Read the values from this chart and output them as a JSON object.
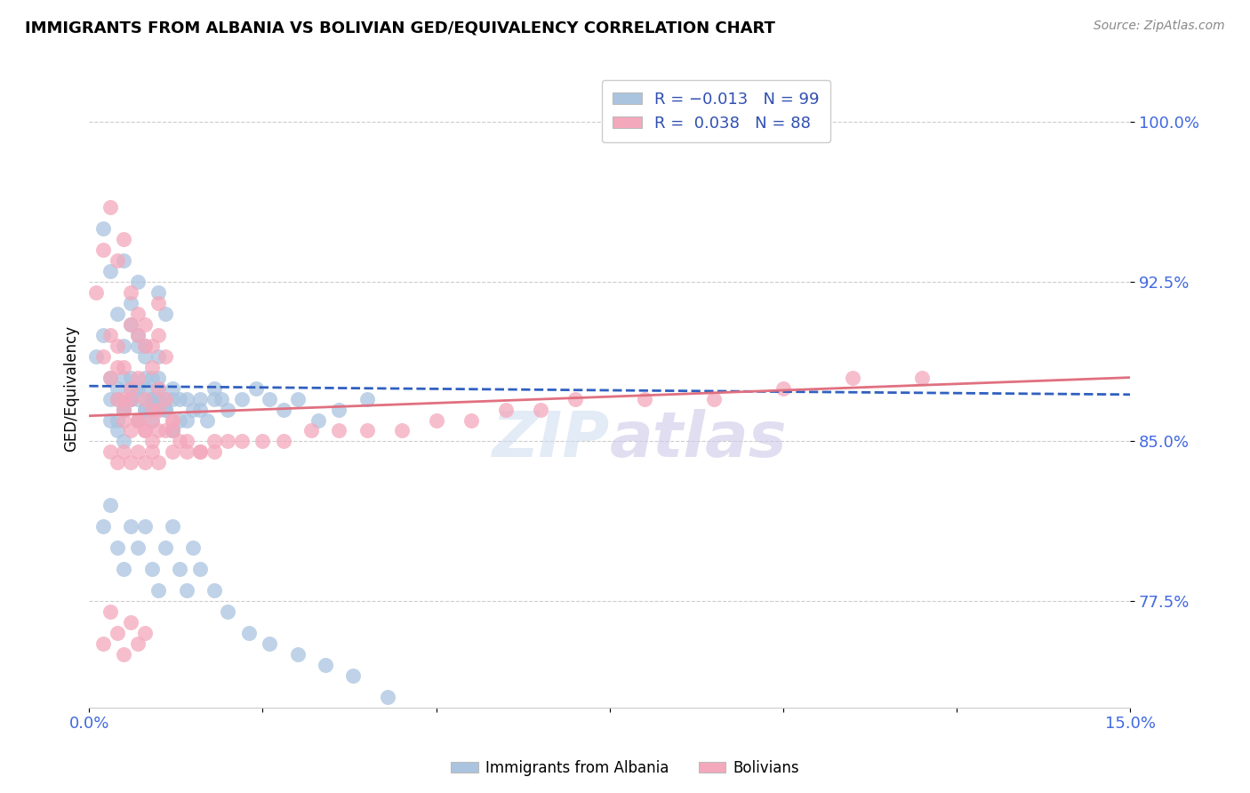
{
  "title": "IMMIGRANTS FROM ALBANIA VS BOLIVIAN GED/EQUIVALENCY CORRELATION CHART",
  "source": "Source: ZipAtlas.com",
  "ylabel": "GED/Equivalency",
  "yticks": [
    "77.5%",
    "85.0%",
    "92.5%",
    "100.0%"
  ],
  "ytick_vals": [
    0.775,
    0.85,
    0.925,
    1.0
  ],
  "xlim": [
    0.0,
    0.15
  ],
  "ylim": [
    0.725,
    1.025
  ],
  "legend_label_blue": "Immigrants from Albania",
  "legend_label_pink": "Bolivians",
  "albania_color": "#aac4e0",
  "bolivia_color": "#f4a8bc",
  "trend_albania_color": "#3060c0",
  "trend_bolivia_color": "#e07080",
  "watermark": "ZIPatlas",
  "albania_x": [
    0.001,
    0.002,
    0.003,
    0.004,
    0.005,
    0.006,
    0.007,
    0.008,
    0.009,
    0.01,
    0.002,
    0.003,
    0.004,
    0.005,
    0.006,
    0.007,
    0.008,
    0.009,
    0.01,
    0.011,
    0.003,
    0.004,
    0.005,
    0.006,
    0.007,
    0.008,
    0.009,
    0.01,
    0.011,
    0.012,
    0.004,
    0.005,
    0.006,
    0.007,
    0.008,
    0.009,
    0.01,
    0.011,
    0.012,
    0.013,
    0.005,
    0.006,
    0.007,
    0.008,
    0.009,
    0.01,
    0.012,
    0.014,
    0.016,
    0.018,
    0.003,
    0.004,
    0.005,
    0.006,
    0.007,
    0.008,
    0.009,
    0.01,
    0.011,
    0.012,
    0.013,
    0.014,
    0.015,
    0.016,
    0.017,
    0.018,
    0.019,
    0.02,
    0.022,
    0.024,
    0.026,
    0.028,
    0.03,
    0.033,
    0.036,
    0.04,
    0.002,
    0.003,
    0.004,
    0.005,
    0.006,
    0.007,
    0.008,
    0.009,
    0.01,
    0.011,
    0.012,
    0.013,
    0.014,
    0.015,
    0.016,
    0.018,
    0.02,
    0.023,
    0.026,
    0.03,
    0.034,
    0.038,
    0.043
  ],
  "albania_y": [
    0.89,
    0.9,
    0.93,
    0.91,
    0.895,
    0.905,
    0.925,
    0.895,
    0.88,
    0.92,
    0.95,
    0.88,
    0.87,
    0.935,
    0.915,
    0.9,
    0.89,
    0.87,
    0.865,
    0.91,
    0.87,
    0.86,
    0.85,
    0.88,
    0.895,
    0.875,
    0.865,
    0.89,
    0.87,
    0.855,
    0.875,
    0.865,
    0.87,
    0.86,
    0.88,
    0.87,
    0.875,
    0.865,
    0.87,
    0.86,
    0.88,
    0.87,
    0.875,
    0.865,
    0.87,
    0.88,
    0.875,
    0.87,
    0.865,
    0.87,
    0.86,
    0.855,
    0.865,
    0.875,
    0.87,
    0.865,
    0.86,
    0.87,
    0.865,
    0.855,
    0.87,
    0.86,
    0.865,
    0.87,
    0.86,
    0.875,
    0.87,
    0.865,
    0.87,
    0.875,
    0.87,
    0.865,
    0.87,
    0.86,
    0.865,
    0.87,
    0.81,
    0.82,
    0.8,
    0.79,
    0.81,
    0.8,
    0.81,
    0.79,
    0.78,
    0.8,
    0.81,
    0.79,
    0.78,
    0.8,
    0.79,
    0.78,
    0.77,
    0.76,
    0.755,
    0.75,
    0.745,
    0.74,
    0.73
  ],
  "bolivia_x": [
    0.001,
    0.002,
    0.003,
    0.004,
    0.005,
    0.006,
    0.007,
    0.008,
    0.009,
    0.01,
    0.002,
    0.003,
    0.004,
    0.005,
    0.006,
    0.007,
    0.008,
    0.009,
    0.01,
    0.011,
    0.003,
    0.004,
    0.005,
    0.006,
    0.007,
    0.008,
    0.009,
    0.01,
    0.011,
    0.012,
    0.004,
    0.005,
    0.006,
    0.007,
    0.008,
    0.009,
    0.01,
    0.011,
    0.012,
    0.013,
    0.005,
    0.006,
    0.007,
    0.008,
    0.009,
    0.01,
    0.012,
    0.014,
    0.016,
    0.018,
    0.003,
    0.004,
    0.005,
    0.006,
    0.007,
    0.008,
    0.009,
    0.01,
    0.012,
    0.014,
    0.016,
    0.018,
    0.02,
    0.022,
    0.025,
    0.028,
    0.032,
    0.036,
    0.04,
    0.045,
    0.05,
    0.055,
    0.06,
    0.065,
    0.07,
    0.08,
    0.09,
    0.1,
    0.11,
    0.12,
    0.002,
    0.003,
    0.004,
    0.005,
    0.006,
    0.007,
    0.008
  ],
  "bolivia_y": [
    0.92,
    0.94,
    0.96,
    0.935,
    0.945,
    0.92,
    0.91,
    0.905,
    0.895,
    0.915,
    0.89,
    0.9,
    0.895,
    0.885,
    0.905,
    0.9,
    0.895,
    0.885,
    0.9,
    0.89,
    0.88,
    0.885,
    0.87,
    0.875,
    0.88,
    0.87,
    0.865,
    0.875,
    0.87,
    0.86,
    0.87,
    0.865,
    0.87,
    0.86,
    0.855,
    0.86,
    0.865,
    0.855,
    0.86,
    0.85,
    0.86,
    0.855,
    0.86,
    0.855,
    0.85,
    0.855,
    0.855,
    0.85,
    0.845,
    0.85,
    0.845,
    0.84,
    0.845,
    0.84,
    0.845,
    0.84,
    0.845,
    0.84,
    0.845,
    0.845,
    0.845,
    0.845,
    0.85,
    0.85,
    0.85,
    0.85,
    0.855,
    0.855,
    0.855,
    0.855,
    0.86,
    0.86,
    0.865,
    0.865,
    0.87,
    0.87,
    0.87,
    0.875,
    0.88,
    0.88,
    0.755,
    0.77,
    0.76,
    0.75,
    0.765,
    0.755,
    0.76
  ]
}
